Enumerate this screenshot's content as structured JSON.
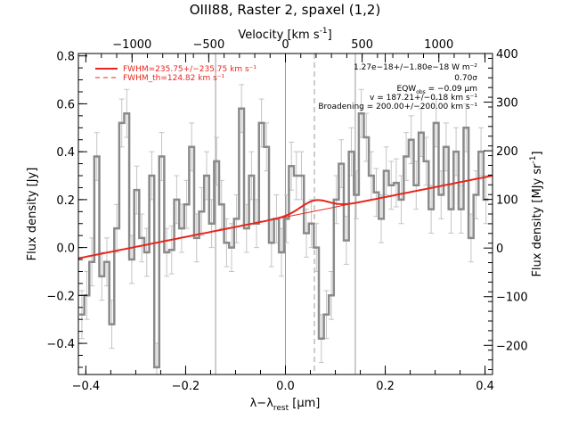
{
  "chart_data": {
    "type": "line",
    "title": "OIII88, Raster 2, spaxel (1,2)",
    "xlabel_main": "λ−λ",
    "xlabel_sub": "rest",
    "xlabel_unit": " [μm]",
    "ylabel_left": "Flux density [Jy]",
    "ylabel_right_main": "Flux density [MJy sr",
    "ylabel_right_exp": "-1",
    "ylabel_right_close": "]",
    "xlabel_top_main": "Velocity [km s",
    "xlabel_top_exp": "-1",
    "xlabel_top_close": "]",
    "xlim": [
      -0.415,
      0.415
    ],
    "ylim": [
      -0.53,
      0.81
    ],
    "right_ylim": [
      -260,
      400
    ],
    "top_xlim": [
      -1350,
      1350
    ],
    "x_ticks": [
      -0.4,
      -0.2,
      0.0,
      0.2,
      0.4
    ],
    "x_tick_labels": [
      "−0.4",
      "−0.2",
      "0.0",
      "0.2",
      "0.4"
    ],
    "y_ticks": [
      -0.4,
      -0.2,
      0.0,
      0.2,
      0.4,
      0.6,
      0.8
    ],
    "y_tick_labels": [
      "−0.4",
      "−0.2",
      "0.0",
      "0.2",
      "0.4",
      "0.6",
      "0.8"
    ],
    "right_y_ticks": [
      -200,
      -100,
      0,
      100,
      200,
      300,
      400
    ],
    "right_y_tick_labels": [
      "−200",
      "−100",
      "0",
      "100",
      "200",
      "300",
      "400"
    ],
    "top_x_ticks": [
      -1000,
      -500,
      0,
      500,
      1000
    ],
    "top_x_tick_labels": [
      "−1000",
      "−500",
      "0",
      "500",
      "1000"
    ],
    "vertical_lines": [
      -0.14,
      0.0,
      0.14
    ],
    "center_dashed_line": 0.058,
    "legend": [
      {
        "text": "FWHM=235.75+/−235.75 km s⁻¹",
        "style": "solid"
      },
      {
        "text": "FWHM_th=124.82 km s⁻¹",
        "style": "dashed"
      }
    ],
    "annotations": [
      "1.27e−18+/−1.80e−18 W m⁻²",
      "0.70σ",
      "EQW",
      "obs",
      " = −0.09 μm",
      "v = 187.21+/−0.18 km s⁻¹",
      "Broadening = 200.00+/−200.00 km s⁻¹"
    ],
    "continuum": {
      "x": [
        -0.415,
        0.415
      ],
      "y": [
        -0.045,
        0.3
      ]
    },
    "gaussian": {
      "center": 0.058,
      "sigma": 0.028,
      "amplitude": 0.045
    },
    "series": [
      {
        "x": [
          -0.408,
          -0.398,
          -0.388,
          -0.378,
          -0.368,
          -0.358,
          -0.348,
          -0.338,
          -0.328,
          -0.318,
          -0.308,
          -0.298,
          -0.288,
          -0.278,
          -0.268,
          -0.258,
          -0.248,
          -0.238,
          -0.228,
          -0.218,
          -0.208,
          -0.198,
          -0.188,
          -0.178,
          -0.168,
          -0.158,
          -0.148,
          -0.138,
          -0.128,
          -0.118,
          -0.108,
          -0.098,
          -0.088,
          -0.078,
          -0.068,
          -0.058,
          -0.048,
          -0.038,
          -0.028,
          -0.018,
          -0.008,
          0.002,
          0.012,
          0.022,
          0.032,
          0.042,
          0.052,
          0.062,
          0.072,
          0.082,
          0.092,
          0.102,
          0.112,
          0.122,
          0.132,
          0.142,
          0.152,
          0.162,
          0.172,
          0.182,
          0.192,
          0.202,
          0.212,
          0.222,
          0.232,
          0.242,
          0.252,
          0.262,
          0.272,
          0.282,
          0.292,
          0.302,
          0.312,
          0.322,
          0.332,
          0.342,
          0.352,
          0.362,
          0.372,
          0.382,
          0.392,
          0.402
        ],
        "y": [
          -0.28,
          -0.2,
          -0.06,
          0.38,
          -0.12,
          -0.06,
          -0.32,
          0.08,
          0.52,
          0.56,
          -0.05,
          0.24,
          0.04,
          -0.02,
          0.3,
          -0.5,
          0.38,
          -0.02,
          -0.01,
          0.2,
          0.08,
          0.18,
          0.42,
          0.04,
          0.15,
          0.3,
          0.1,
          0.36,
          0.18,
          0.02,
          0.0,
          0.12,
          0.58,
          0.08,
          0.3,
          0.1,
          0.52,
          0.42,
          0.02,
          0.12,
          -0.02,
          0.12,
          0.34,
          0.3,
          0.3,
          0.06,
          0.1,
          0.0,
          -0.38,
          -0.28,
          -0.2,
          0.2,
          0.35,
          0.03,
          0.4,
          0.22,
          0.56,
          0.46,
          0.3,
          0.23,
          0.12,
          0.32,
          0.26,
          0.27,
          0.2,
          0.38,
          0.45,
          0.26,
          0.48,
          0.36,
          0.16,
          0.52,
          0.22,
          0.42,
          0.16,
          0.4,
          0.16,
          0.5,
          0.04,
          0.22,
          0.4,
          0.2
        ],
        "yerr": [
          0.1,
          0.1,
          0.1,
          0.1,
          0.1,
          0.1,
          0.1,
          0.1,
          0.1,
          0.1,
          0.1,
          0.1,
          0.1,
          0.1,
          0.1,
          0.1,
          0.1,
          0.1,
          0.1,
          0.1,
          0.1,
          0.1,
          0.1,
          0.1,
          0.1,
          0.1,
          0.1,
          0.1,
          0.1,
          0.1,
          0.1,
          0.1,
          0.1,
          0.1,
          0.1,
          0.1,
          0.1,
          0.1,
          0.1,
          0.1,
          0.1,
          0.1,
          0.1,
          0.1,
          0.1,
          0.1,
          0.1,
          0.1,
          0.1,
          0.1,
          0.1,
          0.1,
          0.1,
          0.1,
          0.1,
          0.1,
          0.1,
          0.1,
          0.1,
          0.1,
          0.1,
          0.1,
          0.1,
          0.1,
          0.1,
          0.1,
          0.1,
          0.1,
          0.1,
          0.1,
          0.1,
          0.1,
          0.1,
          0.1,
          0.1,
          0.1,
          0.1,
          0.1,
          0.1,
          0.1,
          0.1,
          0.1
        ]
      }
    ]
  },
  "colors": {
    "data": "#8a8a8a",
    "error": "#c4c4c4",
    "fit": "#e8251c",
    "grid": "#9a9a9a"
  }
}
